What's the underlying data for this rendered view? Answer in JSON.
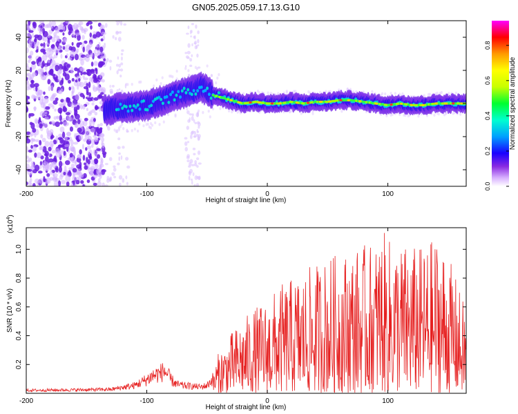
{
  "title": "GN05.2025.059.17.13.G10",
  "colors": {
    "snr_line": "#e62020",
    "axis": "#000000"
  },
  "colorbar": {
    "label": "Normalized spectral amplitude",
    "ticks": [
      0.0,
      0.2,
      0.4,
      0.6,
      0.8
    ],
    "tick_labels": [
      "0.0",
      "0.2",
      "0.4",
      "0.6",
      "0.8"
    ],
    "range": [
      0,
      0.94
    ],
    "colormap": [
      "#ffffff",
      "#d9b3ff",
      "#8a2be2",
      "#1a00ff",
      "#00a0ff",
      "#00ffd0",
      "#00ff30",
      "#c8ff00",
      "#ffff00",
      "#ff9a00",
      "#ff0000",
      "#ff00ff"
    ]
  },
  "chart_data": [
    {
      "type": "heatmap",
      "title": "GN05.2025.059.17.13.G10",
      "xlabel": "Height of straight line (km)",
      "ylabel": "Frequency (Hz)",
      "xlim": [
        -200,
        165
      ],
      "ylim": [
        -50,
        50
      ],
      "x_ticks": [
        -200,
        -100,
        0,
        100
      ],
      "x_tick_labels": [
        "-200",
        "-100",
        "0",
        "100"
      ],
      "y_ticks": [
        -40,
        -20,
        0,
        20,
        40
      ],
      "y_tick_labels": [
        "-40",
        "-20",
        "0",
        "20",
        "40"
      ],
      "grid": false,
      "ridge": {
        "x": [
          -135,
          -125,
          -110,
          -100,
          -90,
          -80,
          -70,
          -60,
          -55,
          -50,
          -45,
          -40,
          -30,
          -20,
          -10,
          0,
          10,
          20,
          30,
          40,
          50,
          60,
          70,
          80,
          90,
          100,
          110,
          120,
          130,
          140,
          150,
          160,
          165
        ],
        "y": [
          -4,
          -3,
          -2,
          -1,
          1,
          4,
          6,
          8,
          10,
          8,
          5,
          4,
          2,
          0,
          1,
          0,
          0,
          1,
          0,
          1,
          1,
          2,
          2,
          1,
          0,
          -1,
          0,
          -1,
          -1,
          0,
          0,
          0,
          0
        ]
      }
    },
    {
      "type": "line",
      "xlabel": "Height of straight line (km)",
      "ylabel": "SNR (10 * v/v)",
      "y_multiplier_label": "(x10",
      "y_multiplier_exp": "4",
      "xlim": [
        -200,
        165
      ],
      "ylim": [
        0,
        11500
      ],
      "x_ticks": [
        -200,
        -100,
        0,
        100
      ],
      "x_tick_labels": [
        "-200",
        "-100",
        "0",
        "100"
      ],
      "y_ticks": [
        2000,
        4000,
        6000,
        8000,
        10000
      ],
      "y_tick_labels": [
        "0.2",
        "0.4",
        "0.6",
        "0.8",
        "1.0"
      ],
      "grid": false,
      "envelope": {
        "x": [
          -200,
          -160,
          -130,
          -120,
          -110,
          -100,
          -95,
          -90,
          -85,
          -80,
          -75,
          -70,
          -60,
          -55,
          -50,
          -45,
          -40,
          -35,
          -30,
          -20,
          -10,
          0,
          10,
          20,
          30,
          40,
          50,
          60,
          70,
          80,
          90,
          95,
          100,
          110,
          120,
          130,
          140,
          145,
          150,
          155,
          160,
          165
        ],
        "y": [
          300,
          350,
          400,
          600,
          800,
          1400,
          1800,
          2000,
          2300,
          1400,
          900,
          800,
          700,
          650,
          800,
          1500,
          3000,
          3500,
          4200,
          5200,
          6000,
          6500,
          7500,
          8000,
          8500,
          9000,
          9500,
          9800,
          10000,
          10300,
          10500,
          11400,
          10800,
          10500,
          10300,
          10200,
          11000,
          10500,
          9500,
          8500,
          7000,
          6000
        ]
      }
    }
  ]
}
